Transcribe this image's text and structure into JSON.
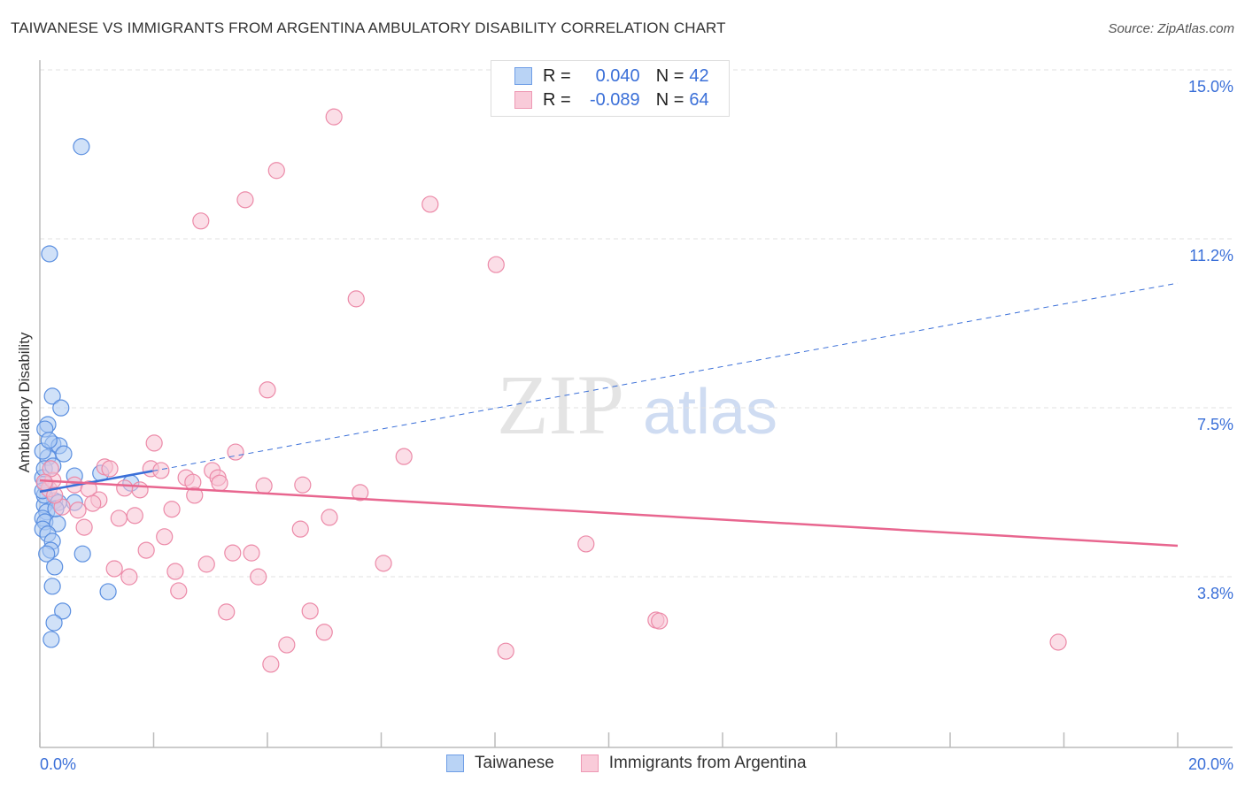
{
  "title": "TAIWANESE VS IMMIGRANTS FROM ARGENTINA AMBULATORY DISABILITY CORRELATION CHART",
  "source": "Source: ZipAtlas.com",
  "watermark": "ZIPatlas",
  "legend": {
    "rows": [
      {
        "r_label": "R =",
        "r_value": "0.040",
        "n_label": "N =",
        "n_value": "42"
      },
      {
        "r_label": "R =",
        "r_value": "-0.089",
        "n_label": "N =",
        "n_value": "64"
      }
    ]
  },
  "chart_data": {
    "type": "scatter",
    "title": "TAIWANESE VS IMMIGRANTS FROM ARGENTINA AMBULATORY DISABILITY CORRELATION CHART",
    "xlabel": "",
    "ylabel": "Ambulatory Disability",
    "xlim": [
      0,
      20
    ],
    "ylim": [
      0.33,
      15.6
    ],
    "x_tick_labels": [
      {
        "value": 0,
        "label": "0.0%"
      },
      {
        "value": 20,
        "label": "20.0%"
      }
    ],
    "y_ticks": [
      {
        "value": 15,
        "label": "15.0%"
      },
      {
        "value": 11.25,
        "label": "11.2%"
      },
      {
        "value": 7.5,
        "label": "7.5%"
      },
      {
        "value": 3.75,
        "label": "3.8%"
      }
    ],
    "grid": true,
    "legend_placement": "top-center",
    "series": [
      {
        "name": "Taiwanese",
        "color": "#5b8fe0",
        "fill": "#a9c8f2",
        "r": 0.04,
        "n": 42,
        "trend": {
          "y_at_0": 5.99,
          "y_at_20": 10.62,
          "solid_until": 1.98,
          "color": "#3a6fd8"
        },
        "points": [
          [
            0.73,
            13.65
          ],
          [
            0.17,
            11.27
          ],
          [
            0.22,
            8.11
          ],
          [
            0.37,
            7.85
          ],
          [
            0.14,
            7.48
          ],
          [
            0.09,
            7.38
          ],
          [
            0.23,
            7.05
          ],
          [
            0.34,
            7.01
          ],
          [
            0.42,
            6.83
          ],
          [
            0.14,
            6.75
          ],
          [
            0.05,
            6.89
          ],
          [
            0.61,
            6.34
          ],
          [
            1.07,
            6.4
          ],
          [
            1.6,
            6.18
          ],
          [
            0.09,
            6.16
          ],
          [
            0.05,
            6.3
          ],
          [
            0.26,
            5.79
          ],
          [
            0.33,
            5.75
          ],
          [
            0.61,
            5.75
          ],
          [
            0.08,
            5.69
          ],
          [
            0.12,
            5.54
          ],
          [
            0.05,
            5.4
          ],
          [
            0.09,
            5.32
          ],
          [
            0.31,
            5.28
          ],
          [
            0.05,
            5.16
          ],
          [
            0.14,
            5.05
          ],
          [
            0.22,
            4.89
          ],
          [
            0.19,
            4.69
          ],
          [
            0.75,
            4.61
          ],
          [
            0.12,
            4.61
          ],
          [
            0.26,
            4.32
          ],
          [
            1.2,
            3.77
          ],
          [
            0.22,
            3.89
          ],
          [
            0.4,
            3.34
          ],
          [
            0.25,
            3.08
          ],
          [
            0.2,
            2.71
          ],
          [
            0.08,
            5.91
          ],
          [
            0.08,
            6.5
          ],
          [
            0.23,
            6.56
          ],
          [
            0.05,
            6.01
          ],
          [
            0.16,
            7.13
          ],
          [
            0.28,
            5.61
          ]
        ]
      },
      {
        "name": "Immigrants from Argentina",
        "color": "#ec8aa8",
        "fill": "#f8c3d3",
        "r": -0.089,
        "n": 64,
        "trend": {
          "y_at_0": 6.24,
          "y_at_20": 4.79,
          "color": "#e8668f"
        },
        "points": [
          [
            5.17,
            14.31
          ],
          [
            4.16,
            13.12
          ],
          [
            3.61,
            12.47
          ],
          [
            6.86,
            12.37
          ],
          [
            2.83,
            12.0
          ],
          [
            8.02,
            11.03
          ],
          [
            5.56,
            10.27
          ],
          [
            4.0,
            8.25
          ],
          [
            2.01,
            7.07
          ],
          [
            3.44,
            6.87
          ],
          [
            6.4,
            6.77
          ],
          [
            1.14,
            6.54
          ],
          [
            1.23,
            6.5
          ],
          [
            1.95,
            6.5
          ],
          [
            2.13,
            6.46
          ],
          [
            3.03,
            6.46
          ],
          [
            2.57,
            6.3
          ],
          [
            2.69,
            6.2
          ],
          [
            3.13,
            6.3
          ],
          [
            3.16,
            6.18
          ],
          [
            3.94,
            6.12
          ],
          [
            4.62,
            6.14
          ],
          [
            5.63,
            5.97
          ],
          [
            0.61,
            6.14
          ],
          [
            0.86,
            6.05
          ],
          [
            1.76,
            6.03
          ],
          [
            1.49,
            6.07
          ],
          [
            2.72,
            5.91
          ],
          [
            1.04,
            5.81
          ],
          [
            0.93,
            5.73
          ],
          [
            0.16,
            6.05
          ],
          [
            0.39,
            5.65
          ],
          [
            0.67,
            5.58
          ],
          [
            2.32,
            5.6
          ],
          [
            1.67,
            5.46
          ],
          [
            1.39,
            5.4
          ],
          [
            5.09,
            5.42
          ],
          [
            0.78,
            5.2
          ],
          [
            4.58,
            5.16
          ],
          [
            2.19,
            4.99
          ],
          [
            1.87,
            4.69
          ],
          [
            3.39,
            4.63
          ],
          [
            3.72,
            4.63
          ],
          [
            9.6,
            4.83
          ],
          [
            2.93,
            4.38
          ],
          [
            6.04,
            4.4
          ],
          [
            1.31,
            4.28
          ],
          [
            2.38,
            4.22
          ],
          [
            1.57,
            4.1
          ],
          [
            3.84,
            4.1
          ],
          [
            2.44,
            3.79
          ],
          [
            3.28,
            3.32
          ],
          [
            4.75,
            3.34
          ],
          [
            10.83,
            3.14
          ],
          [
            10.89,
            3.12
          ],
          [
            5.0,
            2.87
          ],
          [
            4.34,
            2.59
          ],
          [
            4.06,
            2.16
          ],
          [
            8.19,
            2.45
          ],
          [
            17.9,
            2.65
          ],
          [
            0.23,
            6.24
          ],
          [
            0.19,
            6.5
          ],
          [
            0.26,
            5.91
          ],
          [
            0.08,
            6.2
          ]
        ]
      }
    ]
  }
}
